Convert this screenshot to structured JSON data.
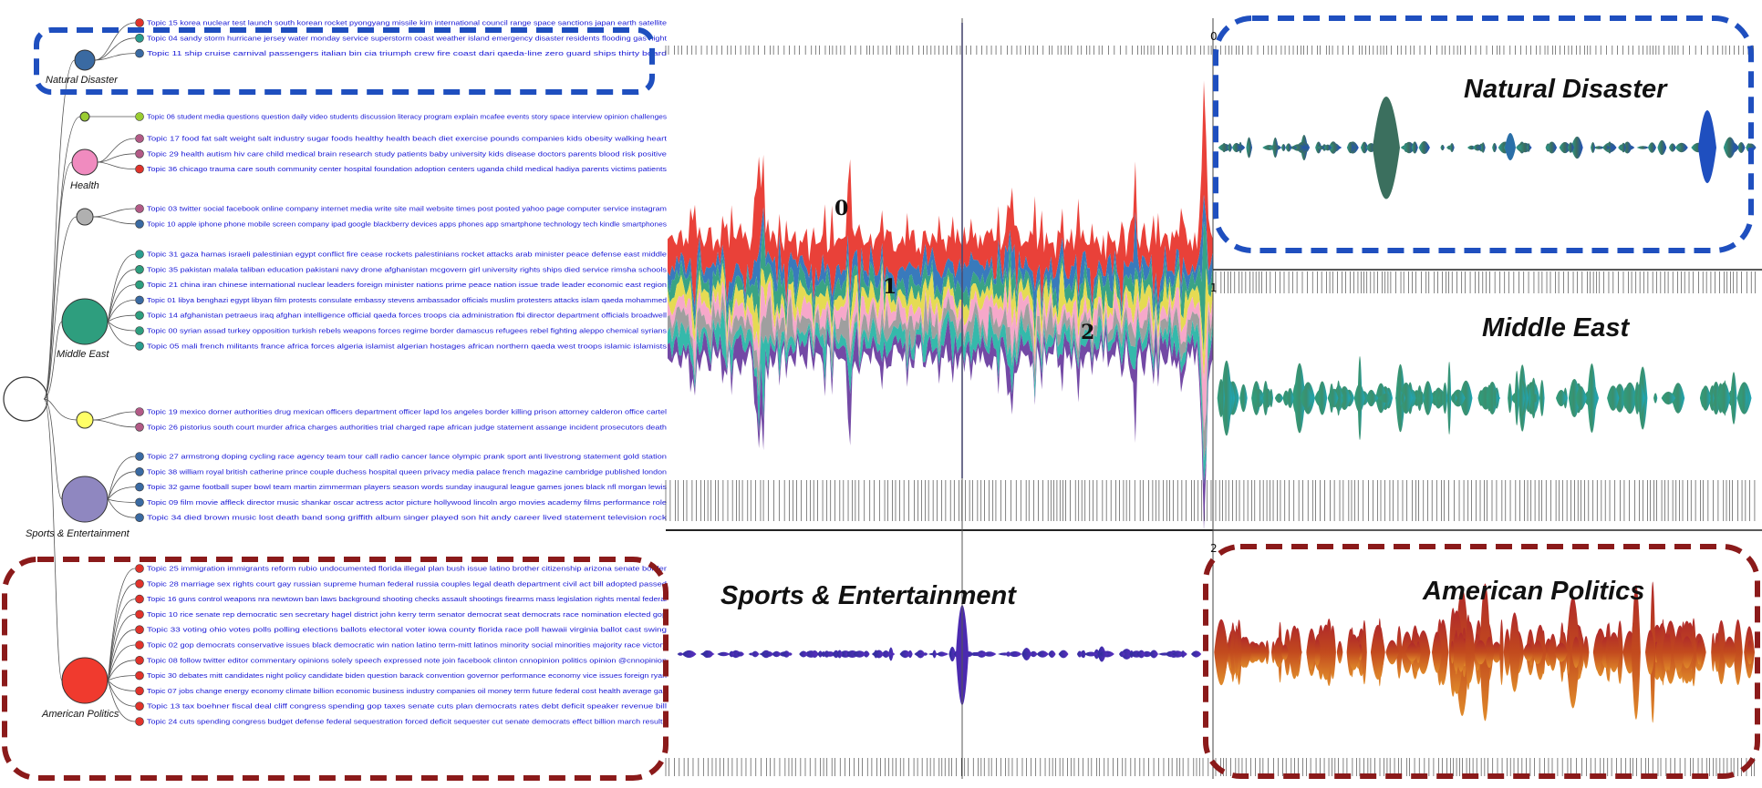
{
  "categories": [
    {
      "label": "Natural Disaster",
      "color": "#3a6aa2",
      "topics": [
        {
          "id": "Topic 15",
          "terms": "korea nuclear test launch south korean rocket pyongyang missile kim international council range space sanctions japan earth satellite",
          "color": "#e0332b"
        },
        {
          "id": "Topic 04",
          "terms": "sandy storm hurricane jersey water monday service superstorm coast weather island emergency disaster residents flooding gas night",
          "color": "#2a9d8f"
        },
        {
          "id": "Topic 11",
          "terms": "ship cruise carnival passengers italian bin cia triumph crew fire coast dari qaeda-line zero guard ships thirty board",
          "color": "#3a6aa2"
        }
      ]
    },
    {
      "label": "",
      "color": "#9acd32",
      "topics": [
        {
          "id": "Topic 06",
          "terms": "student media questions question daily video students discussion literacy program explain mcafee events story space interview opinion challenges",
          "color": "#9acd32"
        }
      ]
    },
    {
      "label": "Health",
      "color": "#f08bbf",
      "topics": [
        {
          "id": "Topic 17",
          "terms": "food fat salt weight salt industry sugar foods healthy health beach diet exercise pounds companies kids obesity walking heart",
          "color": "#b25a86"
        },
        {
          "id": "Topic 29",
          "terms": "health autism hiv care child medical brain research study patients baby university kids disease doctors parents blood risk positive",
          "color": "#b25a86"
        },
        {
          "id": "Topic 36",
          "terms": "chicago trauma care south community center hospital foundation adoption centers uganda child medical hadiya parents victims patients",
          "color": "#e0332b"
        }
      ]
    },
    {
      "label": "",
      "color": "#b0b0b0",
      "topics": [
        {
          "id": "Topic 03",
          "terms": "twitter social facebook online company internet media write site mail website times post posted yahoo page computer service instagram",
          "color": "#b25a86"
        },
        {
          "id": "Topic 10",
          "terms": "apple iphone phone mobile screen company ipad google blackberry devices apps phones app smartphone technology tech kindle smartphones",
          "color": "#3a6aa2"
        }
      ]
    },
    {
      "label": "Middle East",
      "color": "#2e9e7e",
      "topics": [
        {
          "id": "Topic 31",
          "terms": "gaza hamas israeli palestinian egypt conflict fire cease rockets palestinians rocket attacks arab minister peace defense east middle",
          "color": "#2a9d8f"
        },
        {
          "id": "Topic 35",
          "terms": "pakistan malala taliban education pakistani navy drone afghanistan mcgovern girl university rights ships died service rimsha schools",
          "color": "#2e9e7e"
        },
        {
          "id": "Topic 21",
          "terms": "china iran chinese international nuclear leaders foreign minister nations prime peace nation issue trade leader economic east region",
          "color": "#2e9e7e"
        },
        {
          "id": "Topic 01",
          "terms": "libya benghazi egypt libyan film protests consulate embassy stevens ambassador officials muslim protesters attacks islam qaeda mohammed",
          "color": "#3a6aa2"
        },
        {
          "id": "Topic 14",
          "terms": "afghanistan petraeus iraq afghan intelligence official qaeda forces troops cia administration fbi director department officials broadwell",
          "color": "#2e9e7e"
        },
        {
          "id": "Topic 00",
          "terms": "syrian assad turkey opposition turkish rebels weapons forces regime border damascus refugees rebel fighting aleppo chemical syrians",
          "color": "#2e9e7e"
        },
        {
          "id": "Topic 05",
          "terms": "mali french militants france africa forces algeria islamist algerian hostages african northern qaeda west troops islamic islamists",
          "color": "#2a9d8f"
        }
      ]
    },
    {
      "label": "",
      "color": "#ffff66",
      "topics": [
        {
          "id": "Topic 19",
          "terms": "mexico dorner authorities drug mexican officers department officer lapd los angeles border killing prison attorney calderon office cartel",
          "color": "#b25a86"
        },
        {
          "id": "Topic 26",
          "terms": "pistorius south court murder africa charges authorities trial charged rape african judge statement assange incident prosecutors death",
          "color": "#b25a86"
        }
      ]
    },
    {
      "label": "Sports & Entertainment",
      "color": "#8f87c0",
      "topics": [
        {
          "id": "Topic 27",
          "terms": "armstrong doping cycling race agency team tour call radio cancer lance olympic prank sport anti livestrong statement gold station",
          "color": "#3a6aa2"
        },
        {
          "id": "Topic 38",
          "terms": "william royal british catherine prince couple duchess hospital queen privacy media palace french magazine cambridge published london",
          "color": "#3a6aa2"
        },
        {
          "id": "Topic 32",
          "terms": "game football super bowl team martin zimmerman players season words sunday inaugural league games jones black nfl morgan lewis",
          "color": "#3a6aa2"
        },
        {
          "id": "Topic 09",
          "terms": "film movie affleck director music shankar oscar actress actor picture hollywood lincoln argo movies academy films performance role",
          "color": "#3a6aa2"
        },
        {
          "id": "Topic 34",
          "terms": "died brown music lost death band song griffith album singer played son hit andy career lived statement television rock",
          "color": "#3a6aa2"
        }
      ]
    },
    {
      "label": "American Politics",
      "color": "#f03a2e",
      "topics": [
        {
          "id": "Topic 25",
          "terms": "immigration immigrants reform rubio undocumented florida illegal plan bush issue latino brother citizenship arizona senate border",
          "color": "#e0332b"
        },
        {
          "id": "Topic 28",
          "terms": "marriage sex rights court gay russian supreme human federal russia couples legal death department civil act bill adopted passed",
          "color": "#e0332b"
        },
        {
          "id": "Topic 16",
          "terms": "guns control weapons nra newtown ban laws background shooting checks assault shootings firearms mass legislation rights mental federal",
          "color": "#e0332b"
        },
        {
          "id": "Topic 10",
          "terms": "rice senate rep democratic sen secretary hagel district john kerry term senator democrat seat democrats race nomination elected gop",
          "color": "#e0332b"
        },
        {
          "id": "Topic 33",
          "terms": "voting ohio votes polls polling elections ballots electoral voter iowa county florida race poll hawaii virginia ballot cast swing",
          "color": "#e0332b"
        },
        {
          "id": "Topic 02",
          "terms": "gop democrats conservative issues black democratic win nation latino term-mitt latinos minority social minorities majority race victory",
          "color": "#e0332b"
        },
        {
          "id": "Topic 08",
          "terms": "follow twitter editor commentary opinions solely speech expressed note join facebook clinton cnnopinion politics opinion @cnnopinion",
          "color": "#e0332b"
        },
        {
          "id": "Topic 30",
          "terms": "debates mitt candidates night policy candidate biden question barack convention governor performance economy vice issues foreign ryan",
          "color": "#e0332b"
        },
        {
          "id": "Topic 07",
          "terms": "jobs change energy economy climate billion economic business industry companies oil money term future federal cost health average gas",
          "color": "#e0332b"
        },
        {
          "id": "Topic 13",
          "terms": "tax boehner fiscal deal cliff congress spending gop taxes senate cuts plan democrats rates debt deficit speaker revenue bill",
          "color": "#e0332b"
        },
        {
          "id": "Topic 24",
          "terms": "cuts spending congress budget defense federal sequestration forced deficit sequester cut senate democrats effect billion march results",
          "color": "#e0332b"
        }
      ]
    }
  ],
  "stream_markers": [
    "0",
    "1",
    "2"
  ],
  "panel_indices": [
    "0",
    "1",
    "2"
  ],
  "panels": {
    "natural_disaster": "Natural Disaster",
    "middle_east": "Middle East",
    "sports_entertainment": "Sports & Entertainment",
    "american_politics": "American Politics"
  },
  "colors": {
    "blue_box": "#1f4fbf",
    "red_box": "#8b1a1a",
    "topic_text": "#1a1ad6",
    "stream_palette": [
      "#e8372e",
      "#2e73b8",
      "#2e9e7e",
      "#e4d94a",
      "#f5a3c7",
      "#9a9a9a",
      "#2ab5a6",
      "#6b3fa0"
    ]
  }
}
